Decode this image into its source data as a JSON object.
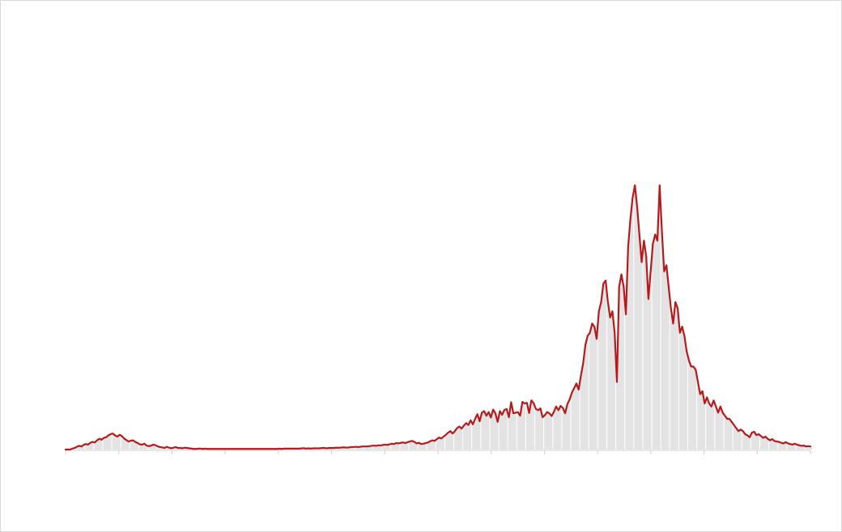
{
  "colors": {
    "line": "#b51a1c",
    "fill": "#e3e3e3",
    "divider": "#ffffff",
    "axis": "#d0d0d0",
    "border": "#d9d9d9"
  },
  "chart_data": {
    "type": "area",
    "title": "",
    "xlabel": "",
    "ylabel": "",
    "grid": false,
    "legend": "none",
    "x_start": 0,
    "x_end": 326,
    "ylim": [
      0,
      100
    ],
    "values": [
      0,
      0,
      0,
      0.3,
      0.5,
      0.9,
      1.2,
      1.0,
      1.5,
      1.8,
      1.6,
      2.2,
      2.5,
      2.3,
      3.0,
      3.5,
      3.2,
      3.8,
      4.0,
      4.6,
      5.0,
      5.2,
      4.6,
      4.2,
      4.8,
      4.4,
      3.6,
      3.1,
      2.6,
      2.9,
      3.0,
      2.5,
      2.1,
      1.7,
      1.6,
      1.9,
      1.3,
      1.1,
      1.3,
      1.6,
      1.4,
      1.0,
      0.8,
      0.7,
      0.5,
      0.9,
      0.6,
      0.4,
      0.6,
      0.8,
      0.5,
      0.5,
      0.4,
      0.6,
      0.5,
      0.4,
      0.3,
      0.2,
      0.2,
      0.3,
      0.3,
      0.2,
      0.3,
      0.2,
      0.2,
      0.2,
      0.2,
      0.2,
      0.2,
      0.2,
      0.2,
      0.2,
      0.2,
      0.2,
      0.2,
      0.2,
      0.2,
      0.2,
      0.2,
      0.2,
      0.2,
      0.2,
      0.2,
      0.2,
      0.2,
      0.2,
      0.2,
      0.2,
      0.2,
      0.2,
      0.2,
      0.2,
      0.2,
      0.2,
      0.2,
      0.3,
      0.2,
      0.3,
      0.3,
      0.3,
      0.3,
      0.3,
      0.3,
      0.3,
      0.3,
      0.4,
      0.4,
      0.3,
      0.4,
      0.3,
      0.4,
      0.4,
      0.4,
      0.4,
      0.5,
      0.5,
      0.4,
      0.5,
      0.5,
      0.5,
      0.6,
      0.6,
      0.6,
      0.7,
      0.7,
      0.6,
      0.7,
      0.8,
      0.8,
      0.9,
      0.8,
      0.9,
      1.0,
      1.0,
      1.0,
      1.1,
      1.2,
      1.3,
      1.2,
      1.4,
      1.3,
      1.5,
      1.6,
      1.5,
      1.7,
      1.9,
      1.8,
      2.1,
      2.0,
      2.2,
      2.3,
      2.1,
      2.4,
      2.6,
      2.8,
      2.5,
      2.0,
      2.2,
      1.8,
      1.9,
      2.1,
      2.3,
      2.7,
      3.0,
      2.8,
      3.4,
      3.9,
      3.6,
      4.2,
      4.8,
      5.5,
      6.0,
      5.2,
      6.0,
      7.0,
      7.5,
      6.8,
      7.8,
      8.6,
      8.0,
      9.5,
      8.2,
      10.0,
      11.5,
      9.2,
      12.0,
      12.5,
      11.0,
      12.2,
      10.4,
      13.0,
      11.8,
      9.0,
      12.5,
      11.3,
      12.9,
      13.2,
      10.5,
      15.4,
      11.8,
      12.0,
      12.2,
      11.0,
      15.5,
      15.0,
      15.2,
      11.9,
      16.0,
      15.1,
      13.2,
      12.8,
      13.4,
      10.5,
      11.2,
      12.2,
      11.8,
      10.9,
      12.3,
      14.0,
      12.8,
      14.2,
      13.5,
      11.8,
      14.8,
      16.3,
      18.5,
      20.0,
      21.5,
      19.5,
      24.0,
      28.0,
      34.0,
      37.0,
      38.0,
      41.0,
      40.0,
      36.0,
      45.0,
      48.0,
      54.0,
      55.0,
      48.0,
      43.0,
      45.0,
      38.0,
      22.0,
      53.0,
      57.0,
      53.0,
      44.0,
      66.0,
      75.0,
      82.0,
      86.0,
      79.0,
      70.0,
      61.0,
      68.0,
      63.0,
      49.0,
      58.0,
      67.0,
      70.0,
      68.0,
      86.0,
      71.0,
      58.0,
      60.0,
      53.0,
      46.0,
      41.0,
      48.0,
      46.0,
      38.0,
      40.0,
      37.0,
      32.0,
      29.0,
      27.0,
      27.0,
      26.0,
      22.0,
      18.0,
      19.0,
      15.0,
      17.0,
      15.0,
      14.0,
      16.0,
      14.0,
      12.0,
      14.0,
      12.0,
      11.0,
      10.0,
      10.0,
      9.0,
      8.0,
      7.0,
      6.0,
      6.5,
      6.0,
      5.0,
      4.6,
      4.0,
      5.5,
      5.8,
      4.7,
      5.0,
      4.4,
      3.8,
      4.2,
      3.5,
      3.0,
      3.4,
      2.8,
      2.6,
      2.5,
      2.2,
      2.0,
      2.4,
      2.0,
      1.8,
      1.6,
      1.9,
      1.6,
      1.4,
      1.2,
      1.3,
      1.0,
      1.1,
      1.0
    ]
  }
}
